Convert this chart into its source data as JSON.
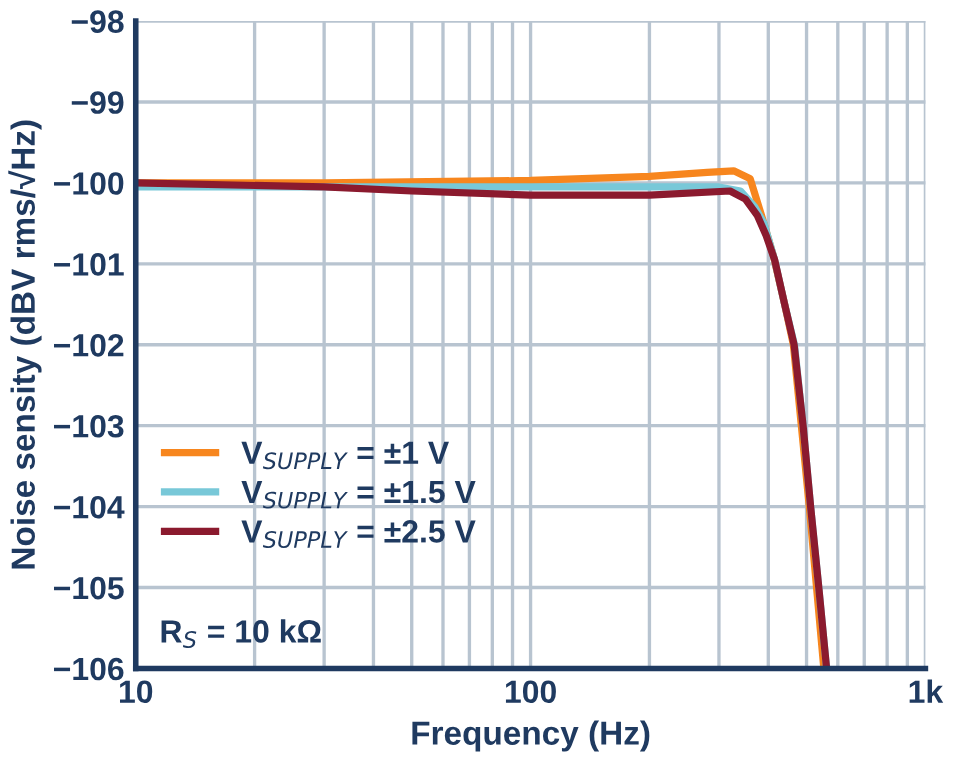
{
  "chart_data": {
    "type": "line",
    "xlabel": "Frequency (Hz)",
    "ylabel": "Noise sensity (dBV rms/√Hz)",
    "log": "x",
    "xlim": [
      10,
      1000
    ],
    "ylim": [
      -106,
      -98
    ],
    "xticks": [
      10,
      {
        "value": 20,
        "label": null
      },
      {
        "value": 30,
        "label": null
      },
      {
        "value": 40,
        "label": null
      },
      {
        "value": 50,
        "label": null
      },
      {
        "value": 60,
        "label": null
      },
      {
        "value": 70,
        "label": null
      },
      {
        "value": 80,
        "label": null
      },
      {
        "value": 90,
        "label": null
      },
      100,
      {
        "value": 200,
        "label": null
      },
      {
        "value": 300,
        "label": null
      },
      {
        "value": 400,
        "label": null
      },
      {
        "value": 500,
        "label": null
      },
      {
        "value": 600,
        "label": null
      },
      {
        "value": 700,
        "label": null
      },
      {
        "value": 800,
        "label": null
      },
      {
        "value": 900,
        "label": null
      },
      {
        "value": 1000,
        "label": "1k"
      }
    ],
    "yticks": [
      {
        "value": -106,
        "label": "−106"
      },
      {
        "value": -105,
        "label": "−105"
      },
      {
        "value": -104,
        "label": "−104"
      },
      {
        "value": -103,
        "label": "−103"
      },
      {
        "value": -102,
        "label": "−102"
      },
      {
        "value": -101,
        "label": "−101"
      },
      {
        "value": -100,
        "label": "−100"
      },
      {
        "value": -99,
        "label": "−99"
      },
      {
        "value": -98,
        "label": "−98"
      }
    ],
    "grid": true,
    "legend": "lower left",
    "marker": "none",
    "line_style": "solid",
    "annotations": [
      "R$_{S}$ = 10 kΩ"
    ],
    "series": [
      {
        "name": "V$_{SUPPLY}$ = ±1 V",
        "color": "#f7861e",
        "x": [
          10,
          30,
          100,
          200,
          280,
          327,
          360,
          390,
          412,
          440,
          463,
          485,
          508,
          530,
          553
        ],
        "values": [
          -100.0,
          -100.0,
          -99.97,
          -99.92,
          -99.87,
          -99.85,
          -99.95,
          -100.5,
          -100.9,
          -101.5,
          -102.0,
          -103.0,
          -104.0,
          -105.0,
          -106.0
        ]
      },
      {
        "name": "V$_{SUPPLY}$ = ±1.5 V",
        "color": "#78c8d8",
        "x": [
          10,
          30,
          100,
          200,
          300,
          340,
          370,
          390,
          415,
          440,
          466,
          490,
          512,
          537,
          562
        ],
        "values": [
          -100.05,
          -100.05,
          -100.05,
          -100.05,
          -100.05,
          -100.1,
          -100.3,
          -100.5,
          -100.95,
          -101.5,
          -102.0,
          -103.0,
          -104.0,
          -105.0,
          -106.0
        ]
      },
      {
        "name": "V$_{SUPPLY}$ = ±2.5 V",
        "color": "#8b1a2e",
        "x": [
          10,
          30,
          50,
          100,
          200,
          320,
          350,
          375,
          395,
          415,
          440,
          465,
          490,
          512,
          537,
          562
        ],
        "values": [
          -100.0,
          -100.05,
          -100.1,
          -100.15,
          -100.15,
          -100.1,
          -100.2,
          -100.4,
          -100.65,
          -100.95,
          -101.5,
          -102.0,
          -103.0,
          -104.0,
          -105.0,
          -106.0
        ]
      }
    ]
  }
}
